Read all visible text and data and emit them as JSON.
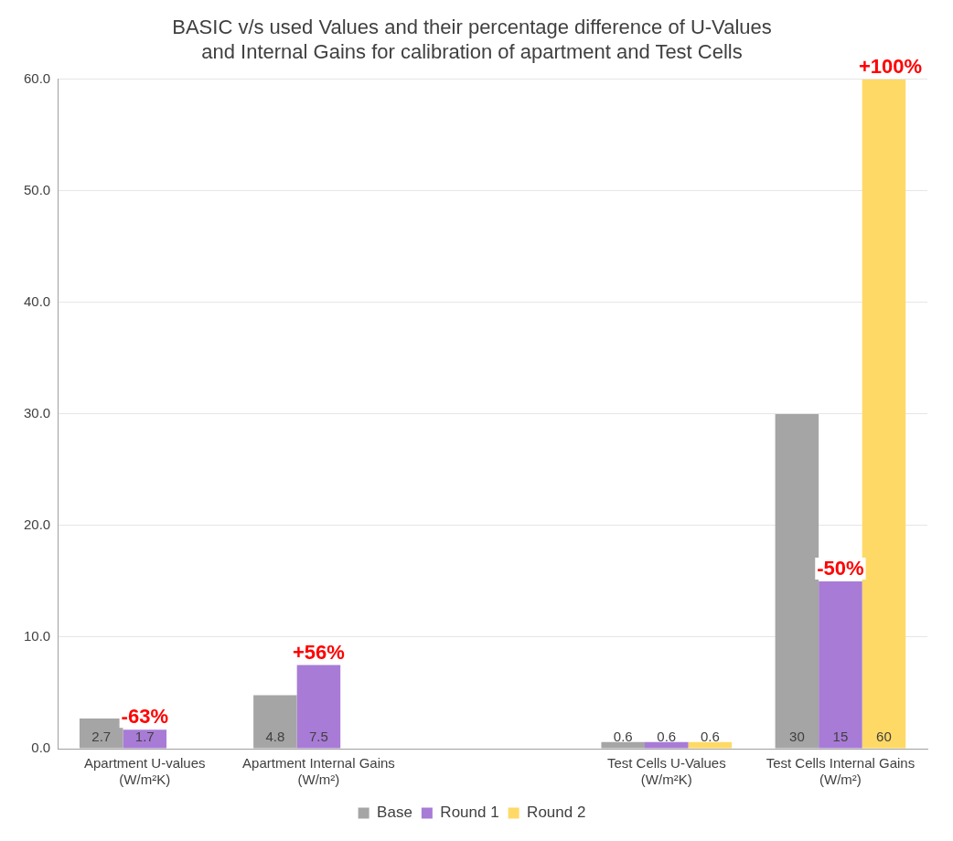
{
  "chart_data": {
    "type": "bar",
    "title": "BASIC v/s used Values and their percentage difference of U-Values and Internal Gains for calibration of apartment and Test Cells",
    "categories": [
      "Apartment U-values (W/m²K)",
      "Apartment Internal Gains (W/m²)",
      null,
      "Test Cells U-Values (W/m²K)",
      "Test Cells Internal Gains (W/m²)"
    ],
    "series": [
      {
        "name": "Base",
        "color": "#a5a5a5",
        "values": [
          2.7,
          4.8,
          null,
          0.6,
          30
        ]
      },
      {
        "name": "Round 1",
        "color": "#a87bd6",
        "values": [
          1.7,
          7.5,
          null,
          0.6,
          15
        ]
      },
      {
        "name": "Round 2",
        "color": "#ffd966",
        "values": [
          null,
          null,
          null,
          0.6,
          60
        ]
      }
    ],
    "ylim": [
      0,
      60
    ],
    "yticks": [
      {
        "value": 0,
        "label": "0.0"
      },
      {
        "value": 10,
        "label": "10.0"
      },
      {
        "value": 20,
        "label": "20.0"
      },
      {
        "value": 30,
        "label": "30.0"
      },
      {
        "value": 40,
        "label": "40.0"
      },
      {
        "value": 50,
        "label": "50.0"
      },
      {
        "value": 60,
        "label": "60.0"
      }
    ],
    "grid": "y",
    "legend": "bottom",
    "data_labels": true,
    "annotations": [
      {
        "text": "-63%",
        "x": "Apartment U-values (W/m²K)",
        "y": 1.7
      },
      {
        "text": "+56%",
        "x": "Apartment Internal Gains (W/m²)",
        "y": 7.5
      },
      {
        "text": "-50%",
        "x": "Test Cells Internal Gains (W/m²)",
        "y": 15
      },
      "+100%"
    ]
  }
}
